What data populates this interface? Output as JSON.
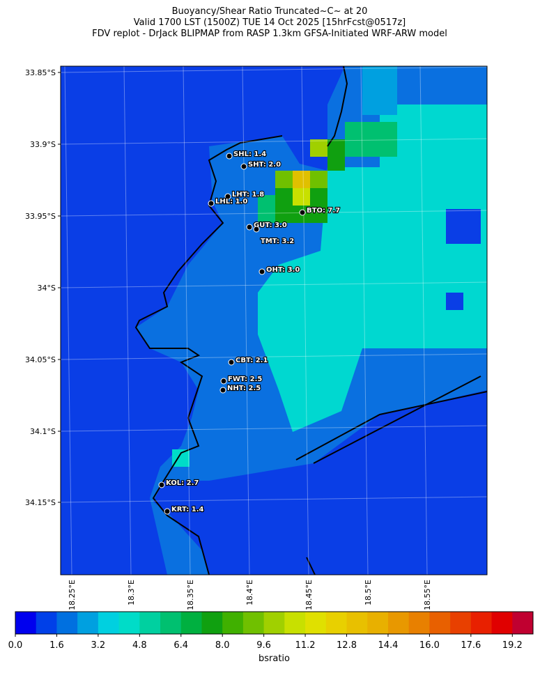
{
  "title_lines": [
    "Buoyancy/Shear Ratio Truncated~C~    at 20",
    "Valid 1700 LST (1500Z) TUE 14 Oct 2025 [15hrFcst@0517z]",
    "FDV replot - DrJack BLIPMAP from RASP 1.3km GFSA-Initiated WRF-ARW model"
  ],
  "lat_ticks": [
    "33.85°S",
    "33.9°S",
    "33.95°S",
    "34°S",
    "34.05°S",
    "34.1°S",
    "34.15°S"
  ],
  "lon_ticks": [
    "18.25°E",
    "18.3°E",
    "18.35°E",
    "18.4°E",
    "18.45°E",
    "18.5°E",
    "18.55°E"
  ],
  "stations": [
    "SHL: 1.4",
    "SHT: 2.0",
    "LHT: 1.8",
    "LHL: 1.0",
    "BTO: 7.7",
    "GUT: 3.0",
    "TMT: 3.2",
    "OHT: 3.0",
    "CBT: 2.1",
    "FWT: 2.5",
    "NHT: 2.5",
    "KOL: 2.7",
    "KRT: 1.4"
  ],
  "colorbar": {
    "label": "bsratio",
    "lim": [
      0,
      20
    ],
    "colors": [
      "#0000ee",
      "#0040e8",
      "#0070e0",
      "#00a0e0",
      "#00d0e0",
      "#00dcc8",
      "#00d0a0",
      "#00c070",
      "#00b040",
      "#10a010",
      "#40b000",
      "#70c000",
      "#a0d000",
      "#c8e000",
      "#e0e000",
      "#e8d000",
      "#e8c000",
      "#e8b000",
      "#e89800",
      "#e88000",
      "#e86000",
      "#e84000",
      "#e82000",
      "#e00000",
      "#c00030"
    ],
    "ticks": [
      {
        "value": 0,
        "label": "0.0"
      },
      {
        "value": 1.6,
        "label": "1.6"
      },
      {
        "value": 3.2,
        "label": "3.2"
      },
      {
        "value": 4.8,
        "label": "4.8"
      },
      {
        "value": 6.4,
        "label": "6.4"
      },
      {
        "value": 8,
        "label": "8.0"
      },
      {
        "value": 9.6,
        "label": "9.6"
      },
      {
        "value": 11.2,
        "label": "11.2"
      },
      {
        "value": 12.8,
        "label": "12.8"
      },
      {
        "value": 14.4,
        "label": "14.4"
      },
      {
        "value": 16,
        "label": "16.0"
      },
      {
        "value": 17.6,
        "label": "17.6"
      },
      {
        "value": 19.2,
        "label": "19.2"
      }
    ]
  }
}
